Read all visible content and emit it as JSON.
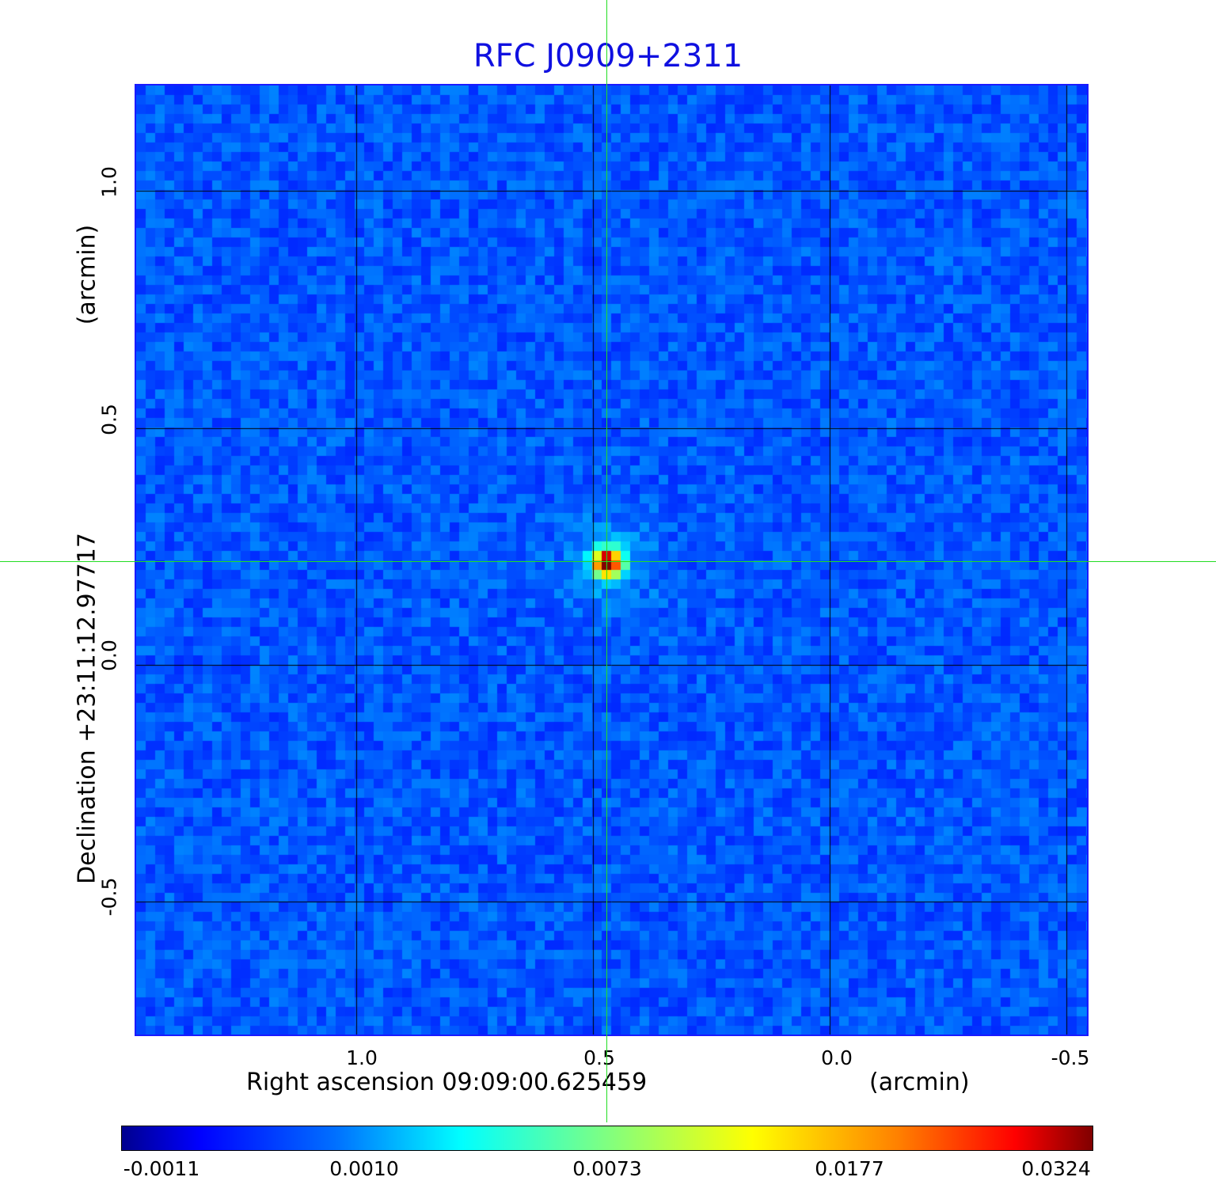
{
  "chart_data": {
    "type": "heatmap",
    "title": "RFC J0909+2311",
    "xlabel": "Right ascension  09:09:00.625459",
    "xunit": "(arcmin)",
    "ylabel": "Declination  +23:11:12.97717",
    "yunit": "(arcmin)",
    "x_ticks": [
      "1.0",
      "0.5",
      "0.0",
      "-0.5"
    ],
    "x_tick_values": [
      1.0,
      0.5,
      0.0,
      -0.5
    ],
    "y_ticks": [
      "1.0",
      "0.5",
      "0.0",
      "-0.5"
    ],
    "y_tick_values": [
      1.0,
      0.5,
      0.0,
      -0.5
    ],
    "xlim": [
      1.465,
      -0.543
    ],
    "ylim": [
      -0.78,
      1.223
    ],
    "grid": true,
    "colormap": "jet",
    "colorbar": {
      "position": "bottom",
      "ticks": [
        "-0.0011",
        "0.0010",
        "0.0073",
        "0.0177",
        "0.0324"
      ],
      "range": [
        -0.0011,
        0.0324
      ]
    },
    "source": {
      "x": 0.47,
      "y": 0.215,
      "peak": 0.0324
    },
    "crosshair": {
      "x": 0.472,
      "y": 0.215,
      "color": "#22dd22"
    }
  },
  "colors": {
    "title": "#1010e0",
    "frame": "#1a1aff",
    "grid": "#000000",
    "crosshair": "#22dd22"
  }
}
